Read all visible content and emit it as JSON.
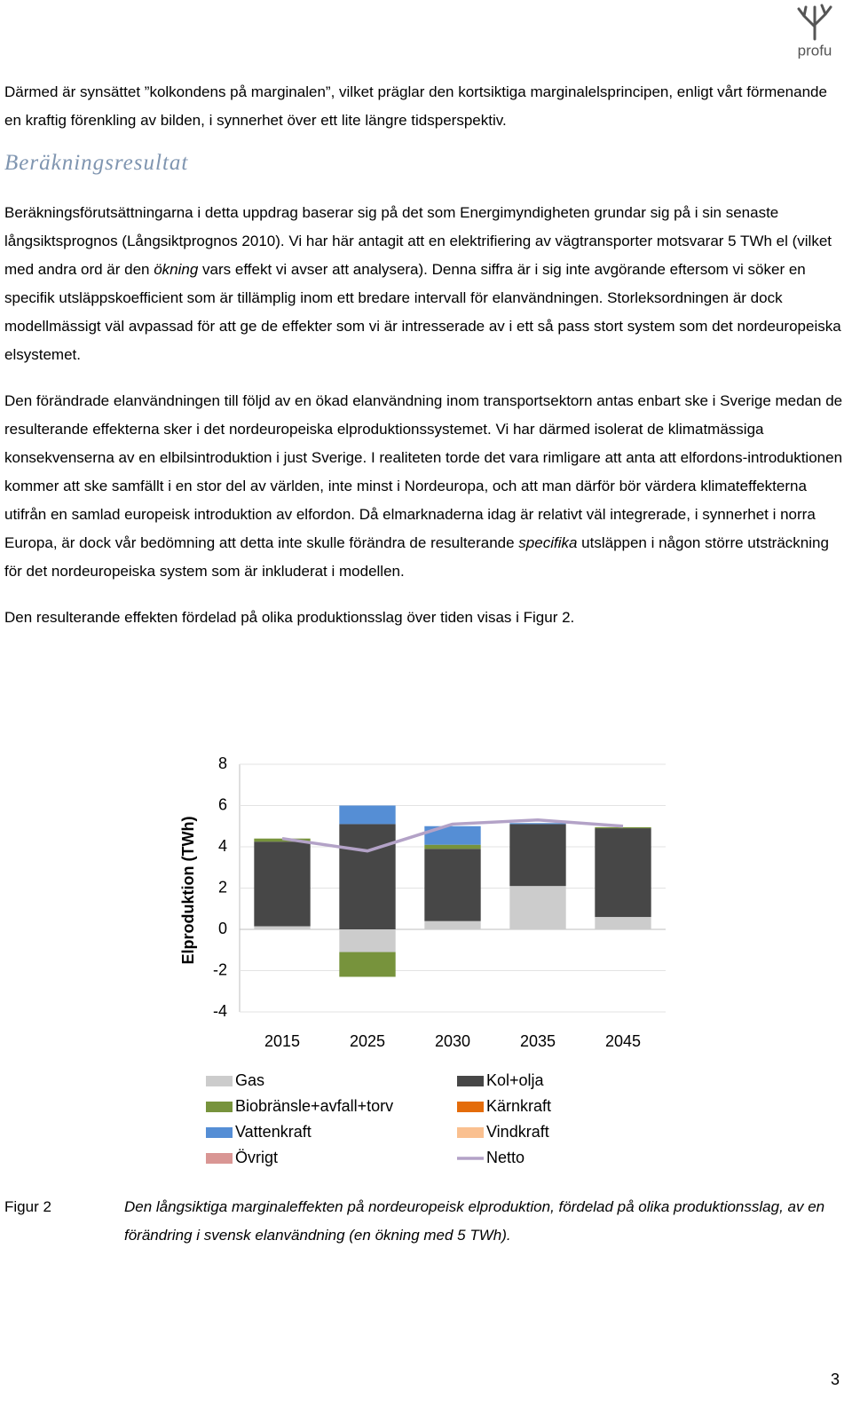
{
  "header": {
    "logo": "profu"
  },
  "blocks": [
    {
      "paragraph": [
        "Därmed är synsättet ”kolkondens på marginalen”, vilket präglar den kortsiktiga marginalelsprincipen, enligt vårt förmenande en kraftig förenkling av bilden, i synnerhet över ett lite längre tidsperspektiv."
      ]
    },
    {
      "heading": "Beräkningsresultat"
    },
    {
      "paragraph": [
        "Beräkningsförutsättningarna i detta uppdrag baserar sig på det som Energimyndigheten grundar sig på i sin senaste långsiktsprognos (Långsiktprognos 2010). Vi har här antagit att en elektrifiering av vägtransporter motsvarar 5 TWh el (vilket med andra ord är den ",
        {
          "text": "ökning",
          "italic": true
        },
        " vars effekt vi avser att analysera). Denna siffra är i sig inte avgörande eftersom vi söker en specifik utsläppskoefficient som är tillämplig inom ett bredare intervall för elanvändningen. Storleksordningen är dock modellmässigt väl avpassad för att ge de effekter som vi är intresserade av i ett så pass stort system som det nordeuropeiska elsystemet."
      ]
    },
    {
      "paragraph": [
        "Den förändrade elanvändningen till följd av en ökad elanvändning inom transportsektorn antas enbart ske i Sverige medan de resulterande effekterna sker i det nordeuropeiska elproduktionssystemet. Vi har därmed isolerat de klimatmässiga konsekvenserna av en elbilsintroduktion i just Sverige. I realiteten torde det vara rimligare att anta att elfordons-introduktionen kommer att ske samfällt i en stor del av världen, inte minst i Nordeuropa, och att man därför bör värdera klimateffekterna utifrån en samlad europeisk introduktion av elfordon. Då elmarknaderna idag är relativt väl integrerade, i synnerhet i norra Europa, är dock vår bedömning att detta inte skulle förändra de resulterande ",
        {
          "text": "specifika",
          "italic": true
        },
        " utsläppen i någon större utsträckning för det nordeuropeiska system som är inkluderat i modellen."
      ]
    },
    {
      "paragraph": [
        "Den resulterande effekten fördelad på olika produktionsslag över tiden visas i Figur 2."
      ]
    }
  ],
  "chart_data": {
    "type": "bar",
    "stacked": true,
    "y_label": "Elproduktion (TWh)",
    "categories": [
      "2015",
      "2025",
      "2030",
      "2035",
      "2045"
    ],
    "ylim": [
      -4,
      8
    ],
    "yticks": [
      -4,
      -2,
      0,
      2,
      4,
      6,
      8
    ],
    "grid": true,
    "series": [
      {
        "name": "Gas",
        "color": "#cccccc",
        "values": [
          0.15,
          -1.1,
          0.4,
          2.1,
          0.6
        ]
      },
      {
        "name": "Kol+olja",
        "color": "#474747",
        "values": [
          4.1,
          5.1,
          3.5,
          3.0,
          4.3
        ]
      },
      {
        "name": "Biobränsle+avfall+torv",
        "color": "#77933c",
        "values": [
          0.15,
          -1.2,
          0.2,
          0,
          0.05
        ]
      },
      {
        "name": "Kärnkraft",
        "color": "#e46c0a",
        "values": [
          0,
          0,
          0,
          0,
          0
        ]
      },
      {
        "name": "Vattenkraft",
        "color": "#558ed5",
        "values": [
          0,
          0.9,
          0.9,
          0.05,
          0
        ]
      },
      {
        "name": "Vindkraft",
        "color": "#fac090",
        "values": [
          0,
          0,
          0,
          0,
          0
        ]
      },
      {
        "name": "Övrigt",
        "color": "#d99694",
        "values": [
          0,
          0,
          0,
          0,
          0
        ]
      },
      {
        "name": "Netto",
        "color": "#b3a2c7",
        "type": "line",
        "values": [
          4.4,
          3.8,
          5.1,
          5.3,
          5.0
        ]
      }
    ]
  },
  "figure": {
    "label": "Figur 2",
    "caption": "Den långsiktiga marginaleffekten på nordeuropeisk elproduktion, fördelad på olika produktionsslag, av en förändring i svensk elanvändning (en ökning med 5 TWh)."
  },
  "page_number": 3
}
